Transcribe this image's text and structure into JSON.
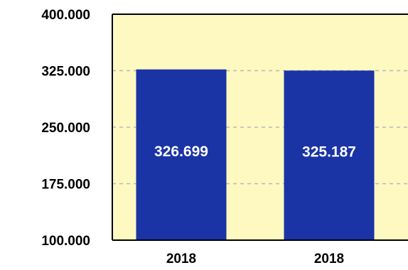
{
  "chart_data": {
    "type": "bar",
    "categories": [
      "2018",
      "2018"
    ],
    "values": [
      326.699,
      325.187
    ],
    "data_labels": [
      "326.699",
      "325.187"
    ],
    "y_ticks": [
      {
        "value": 100,
        "label": "100.000"
      },
      {
        "value": 175,
        "label": "175.000"
      },
      {
        "value": 250,
        "label": "250.000"
      },
      {
        "value": 325,
        "label": "325.000"
      },
      {
        "value": 400,
        "label": "400.000"
      }
    ],
    "ylim": [
      100,
      400
    ],
    "grid": true,
    "legend": "none",
    "colors": {
      "bar": "#1a33a5",
      "plot_background": "#fdf9c1",
      "axis": "#000000",
      "grid": "#b8b8b8"
    }
  }
}
